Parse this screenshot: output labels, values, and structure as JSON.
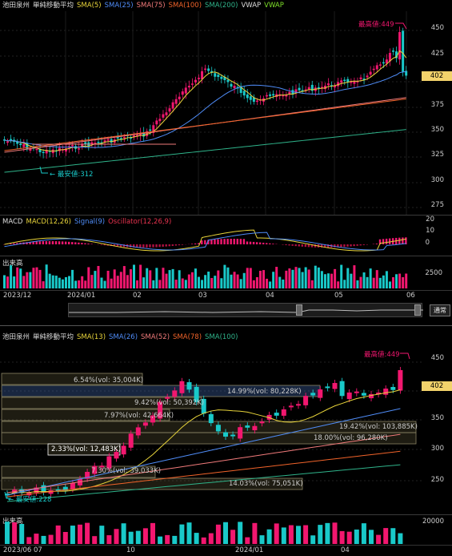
{
  "top": {
    "legend": [
      {
        "text": "池田泉州",
        "color": "#dddddd"
      },
      {
        "text": "単純移動平均",
        "color": "#dddddd"
      },
      {
        "text": "SMA(5)",
        "color": "#e8d43a"
      },
      {
        "text": "SMA(25)",
        "color": "#4f8cf7"
      },
      {
        "text": "SMA(75)",
        "color": "#f07a7a"
      },
      {
        "text": "SMA(100)",
        "color": "#f0632a"
      },
      {
        "text": "SMA(200)",
        "color": "#2fb38a"
      },
      {
        "text": "VWAP",
        "color": "#dddddd"
      },
      {
        "text": "VWAP",
        "color": "#7ee02a"
      }
    ],
    "y_ticks": [
      "450",
      "425",
      "400",
      "375",
      "350",
      "325",
      "300",
      "275"
    ],
    "last_price": "402",
    "high_label": "最高値:449",
    "low_label": "最安値:312"
  },
  "macd": {
    "legend": [
      {
        "text": "MACD",
        "color": "#dddddd"
      },
      {
        "text": "MACD(12,26)",
        "color": "#e8d43a"
      },
      {
        "text": "Signal(9)",
        "color": "#4f8cf7"
      },
      {
        "text": "Oscillator(12,26,9)",
        "color": "#e8334f"
      }
    ],
    "y_ticks": [
      "20",
      "10",
      "0"
    ]
  },
  "volume_top": {
    "title": "出来高",
    "y_tick": "2500"
  },
  "top_dates": [
    "2023/12",
    "2024/01",
    "02",
    "03",
    "04",
    "05",
    "06"
  ],
  "scroll_button": "通常",
  "bottom": {
    "legend": [
      {
        "text": "池田泉州",
        "color": "#dddddd"
      },
      {
        "text": "単純移動平均",
        "color": "#dddddd"
      },
      {
        "text": "SMA(13)",
        "color": "#e8d43a"
      },
      {
        "text": "SMA(26)",
        "color": "#4f8cf7"
      },
      {
        "text": "SMA(52)",
        "color": "#f07a7a"
      },
      {
        "text": "SMA(78)",
        "color": "#f0632a"
      },
      {
        "text": "SMA(100)",
        "color": "#2fb38a"
      }
    ],
    "y_ticks": [
      "450",
      "400",
      "350",
      "300",
      "250"
    ],
    "last_price": "402",
    "high_label": "最高値:449",
    "low_label": "最安値:228",
    "profile": [
      {
        "label": "6.54%(vol: 35,004K)"
      },
      {
        "label": "14.99%(vol: 80,228K)"
      },
      {
        "label": "9.42%(vol: 50,392K)"
      },
      {
        "label": "7.97%(vol: 42,664K)"
      },
      {
        "label": "19.42%(vol: 103,885K)"
      },
      {
        "label": "18.00%(vol: 96,280K)"
      },
      {
        "label": "2.33%(vol: 12,483K)"
      },
      {
        "label": "7.30%(vol: 39,033K)"
      },
      {
        "label": "14.03%(vol: 75,051K)"
      }
    ]
  },
  "volume_bottom": {
    "title": "出来高",
    "y_tick": "20000"
  },
  "bottom_dates": [
    "2023/06",
    "07",
    "10",
    "2024/01",
    "04"
  ],
  "colors": {
    "up": "#f2176f",
    "down": "#19c9c9",
    "bg": "#000000"
  }
}
